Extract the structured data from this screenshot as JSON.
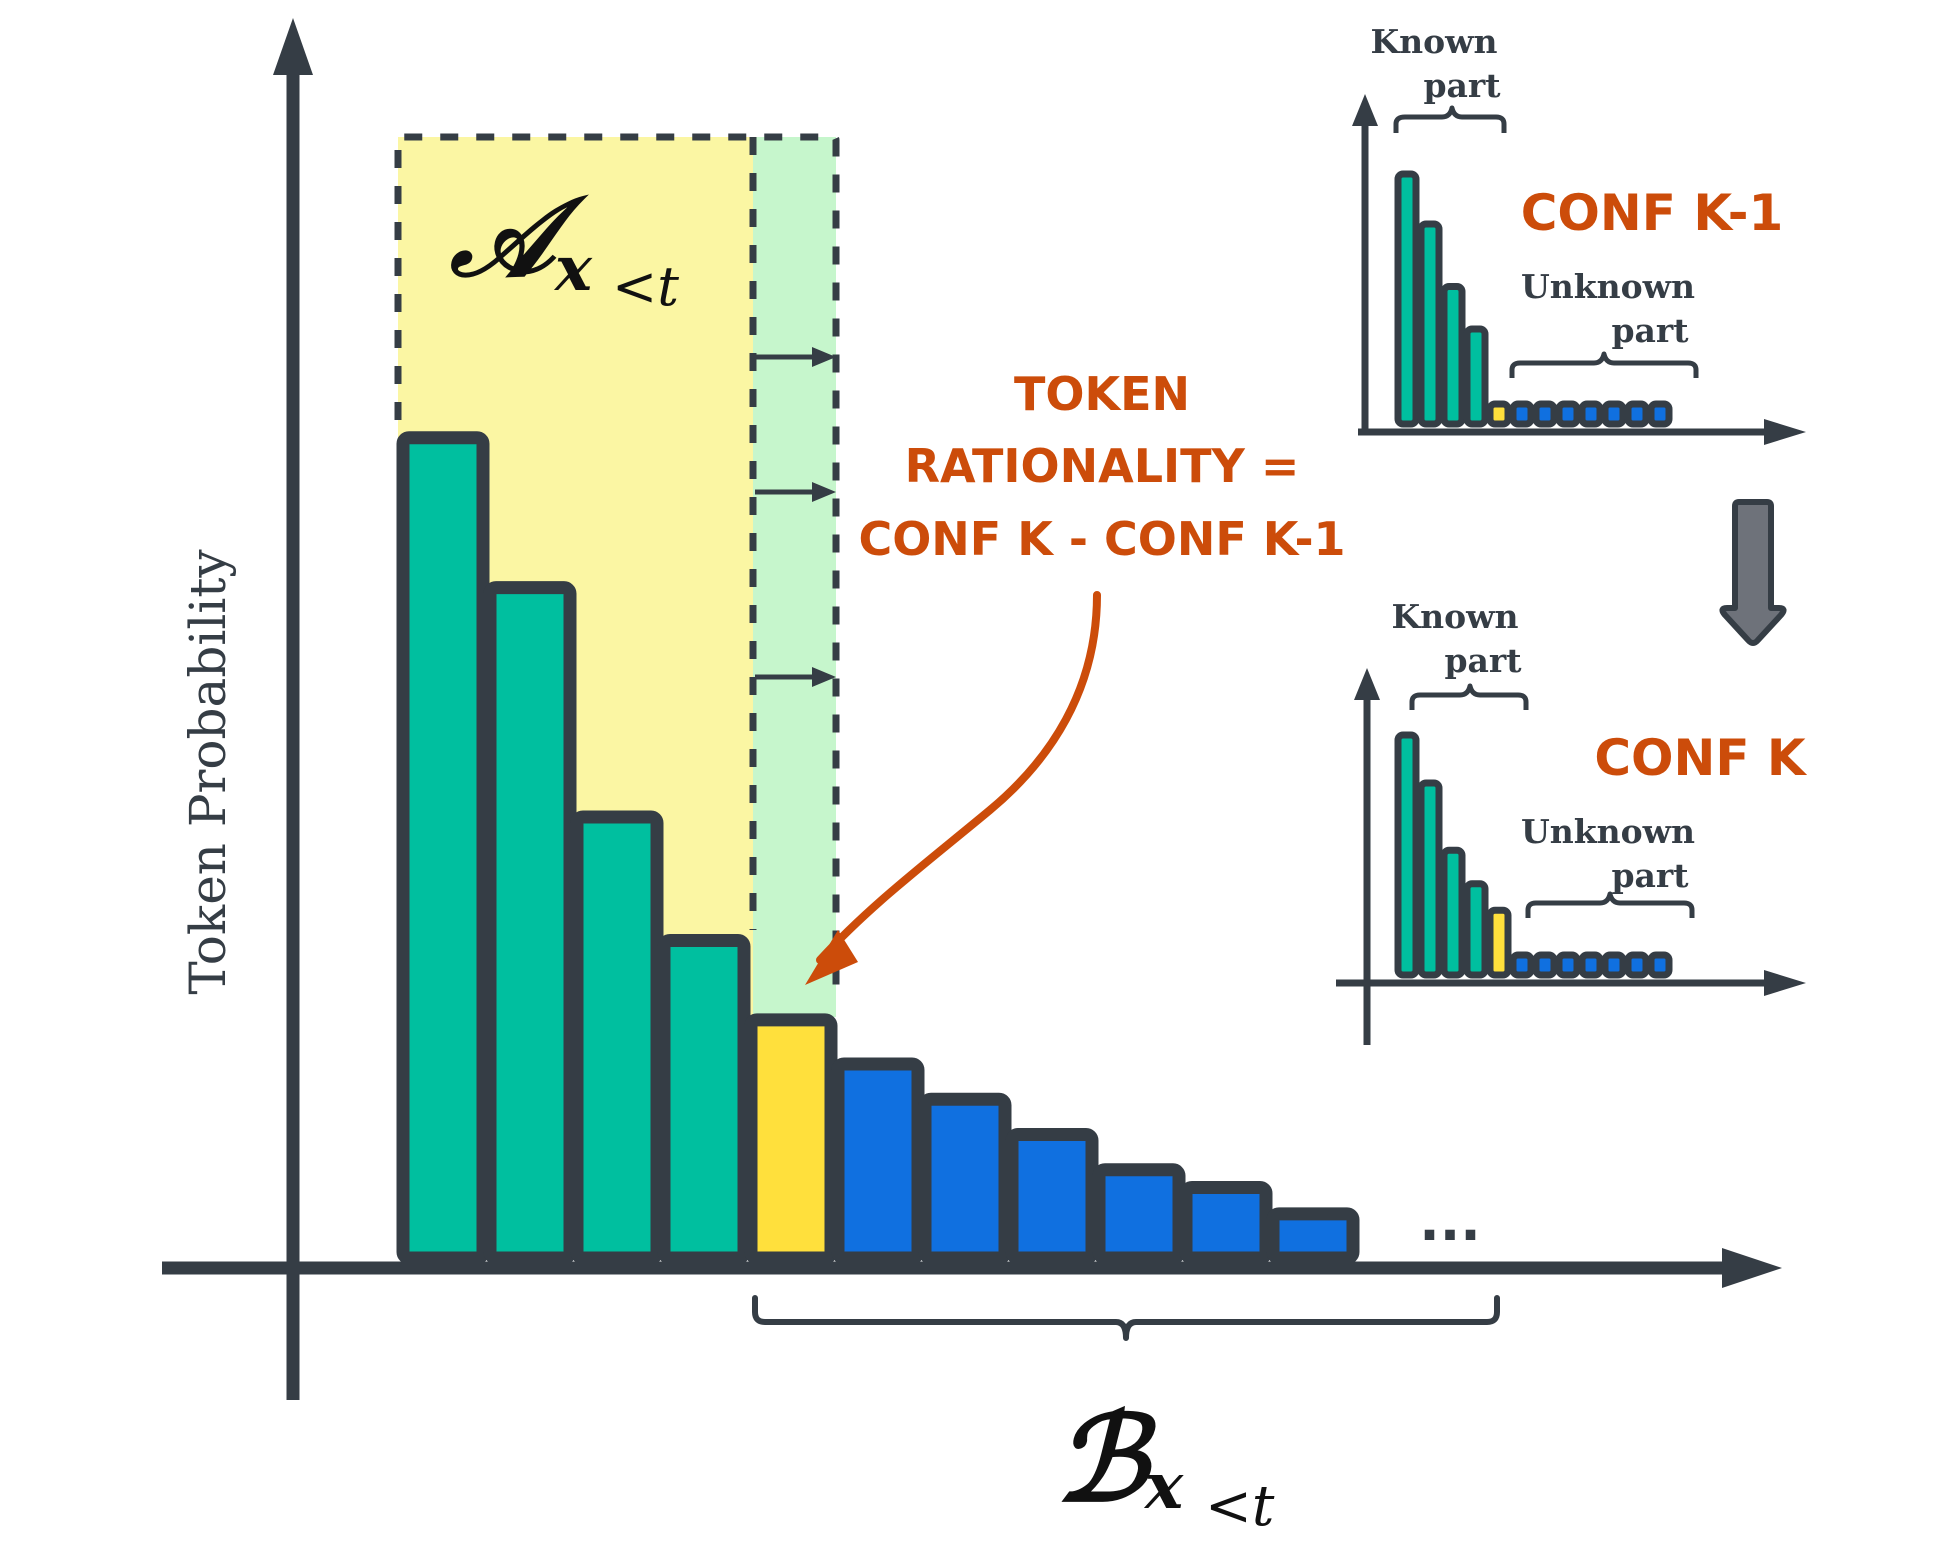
{
  "colors": {
    "axis": "#353d45",
    "known_bar": "#00bf9f",
    "pivot_bar": "#ffe03c",
    "unknown_bar": "#1070e0",
    "region_a": "#fbf6a3",
    "region_shift": "#c6f6cc",
    "annotation": "#cc4c0a",
    "down_arrow": "#6e727a",
    "outline": "#353d45"
  },
  "main": {
    "y_axis_label": "Token Probability",
    "region_a_symbol": "𝒜",
    "region_b_symbol": "ℬ",
    "subscript_var": "x",
    "subscript_rel": "<t",
    "ellipsis": "...",
    "bars": [
      {
        "value": 0.93,
        "group": "known"
      },
      {
        "value": 0.76,
        "group": "known"
      },
      {
        "value": 0.5,
        "group": "known"
      },
      {
        "value": 0.36,
        "group": "known"
      },
      {
        "value": 0.27,
        "group": "pivot"
      },
      {
        "value": 0.22,
        "group": "unknown"
      },
      {
        "value": 0.18,
        "group": "unknown"
      },
      {
        "value": 0.14,
        "group": "unknown"
      },
      {
        "value": 0.1,
        "group": "unknown"
      },
      {
        "value": 0.08,
        "group": "unknown"
      },
      {
        "value": 0.05,
        "group": "unknown"
      }
    ]
  },
  "annotation": {
    "lines": [
      "TOKEN",
      "RATIONALITY =",
      "CONF K - CONF K-1"
    ]
  },
  "panel_top": {
    "title": "CONF K-1",
    "known_label": [
      "Known",
      "part"
    ],
    "unknown_label": [
      "Unknown",
      "part"
    ],
    "bars": [
      {
        "value": 1.0,
        "group": "known"
      },
      {
        "value": 0.8,
        "group": "known"
      },
      {
        "value": 0.55,
        "group": "known"
      },
      {
        "value": 0.38,
        "group": "known"
      },
      {
        "value": 0.08,
        "group": "pivot"
      },
      {
        "value": 0.08,
        "group": "unknown"
      },
      {
        "value": 0.08,
        "group": "unknown"
      },
      {
        "value": 0.08,
        "group": "unknown"
      },
      {
        "value": 0.08,
        "group": "unknown"
      },
      {
        "value": 0.08,
        "group": "unknown"
      },
      {
        "value": 0.08,
        "group": "unknown"
      },
      {
        "value": 0.08,
        "group": "unknown"
      }
    ]
  },
  "panel_bottom": {
    "title": "CONF K",
    "known_label": [
      "Known",
      "part"
    ],
    "unknown_label": [
      "Unknown",
      "part"
    ],
    "bars": [
      {
        "value": 1.0,
        "group": "known"
      },
      {
        "value": 0.8,
        "group": "known"
      },
      {
        "value": 0.52,
        "group": "known"
      },
      {
        "value": 0.38,
        "group": "known"
      },
      {
        "value": 0.27,
        "group": "pivot"
      },
      {
        "value": 0.08,
        "group": "unknown"
      },
      {
        "value": 0.08,
        "group": "unknown"
      },
      {
        "value": 0.08,
        "group": "unknown"
      },
      {
        "value": 0.08,
        "group": "unknown"
      },
      {
        "value": 0.08,
        "group": "unknown"
      },
      {
        "value": 0.08,
        "group": "unknown"
      },
      {
        "value": 0.08,
        "group": "unknown"
      }
    ]
  }
}
